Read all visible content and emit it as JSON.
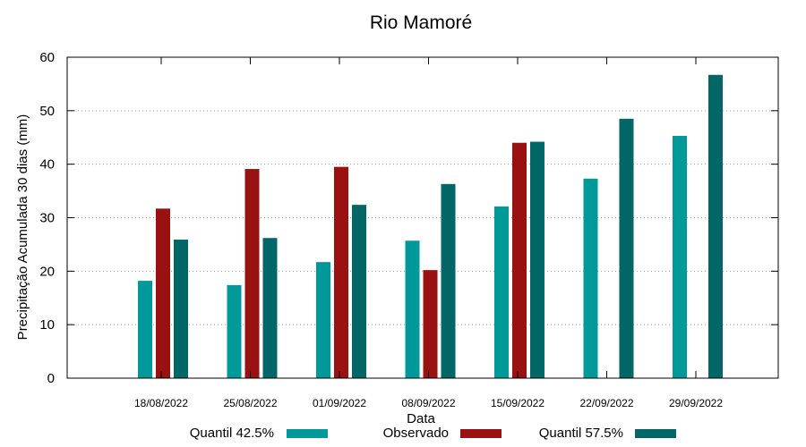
{
  "chart_data": {
    "type": "bar",
    "title": "Rio Mamoré",
    "xlabel": "Data",
    "ylabel": "Precipitação Acumulada 30 dias (mm)",
    "ylim": [
      0,
      60
    ],
    "yticks": [
      0,
      10,
      20,
      30,
      40,
      50,
      60
    ],
    "grid": "horizontal dotted",
    "categories": [
      "18/08/2022",
      "25/08/2022",
      "01/09/2022",
      "08/09/2022",
      "15/09/2022",
      "22/09/2022",
      "29/09/2022"
    ],
    "series": [
      {
        "name": "Quantil 42.5%",
        "color": "#009999",
        "values": [
          18.2,
          17.4,
          21.7,
          25.7,
          32.1,
          37.3,
          45.3
        ]
      },
      {
        "name": "Observado",
        "color": "#991111",
        "values": [
          31.7,
          39.1,
          39.5,
          20.2,
          44.0,
          null,
          null
        ]
      },
      {
        "name": "Quantil 57.5%",
        "color": "#006666",
        "values": [
          25.9,
          26.2,
          32.4,
          36.3,
          44.2,
          48.5,
          56.7
        ]
      }
    ],
    "legend_position": "bottom"
  }
}
